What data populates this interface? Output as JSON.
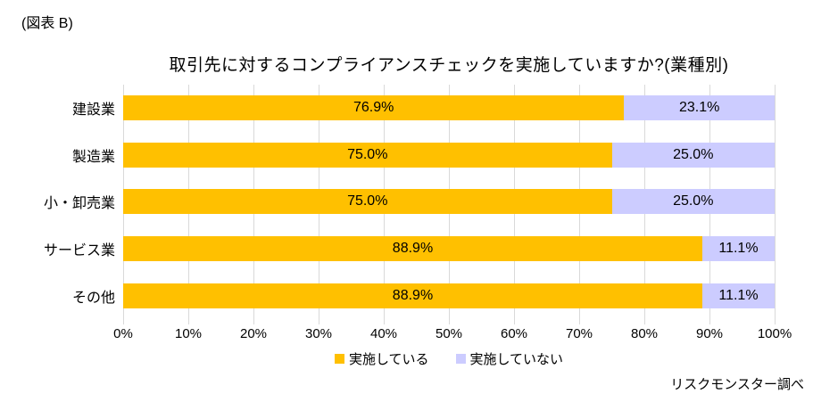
{
  "figure_label": "(図表 B)",
  "source": "リスクモンスター調べ",
  "colors": {
    "implemented": "#FFC000",
    "not_implemented": "#CCCCFF",
    "gridline": "#D9D9D9",
    "text": "#000000",
    "background": "#FFFFFF"
  },
  "chart_data": {
    "type": "bar",
    "orientation": "horizontal-stacked",
    "title": "取引先に対するコンプライアンスチェックを実施していますか?(業種別)",
    "categories": [
      "建設業",
      "製造業",
      "小・卸売業",
      "サービス業",
      "その他"
    ],
    "series": [
      {
        "name": "実施している",
        "color": "#FFC000",
        "values": [
          76.9,
          75.0,
          75.0,
          88.9,
          88.9
        ]
      },
      {
        "name": "実施していない",
        "color": "#CCCCFF",
        "values": [
          23.1,
          25.0,
          25.0,
          11.1,
          11.1
        ]
      }
    ],
    "value_label_format": "percent_1dp",
    "x_ticks": [
      "0%",
      "10%",
      "20%",
      "30%",
      "40%",
      "50%",
      "60%",
      "70%",
      "80%",
      "90%",
      "100%"
    ],
    "xlim": [
      0,
      100
    ],
    "grid": true,
    "legend_position": "bottom"
  }
}
